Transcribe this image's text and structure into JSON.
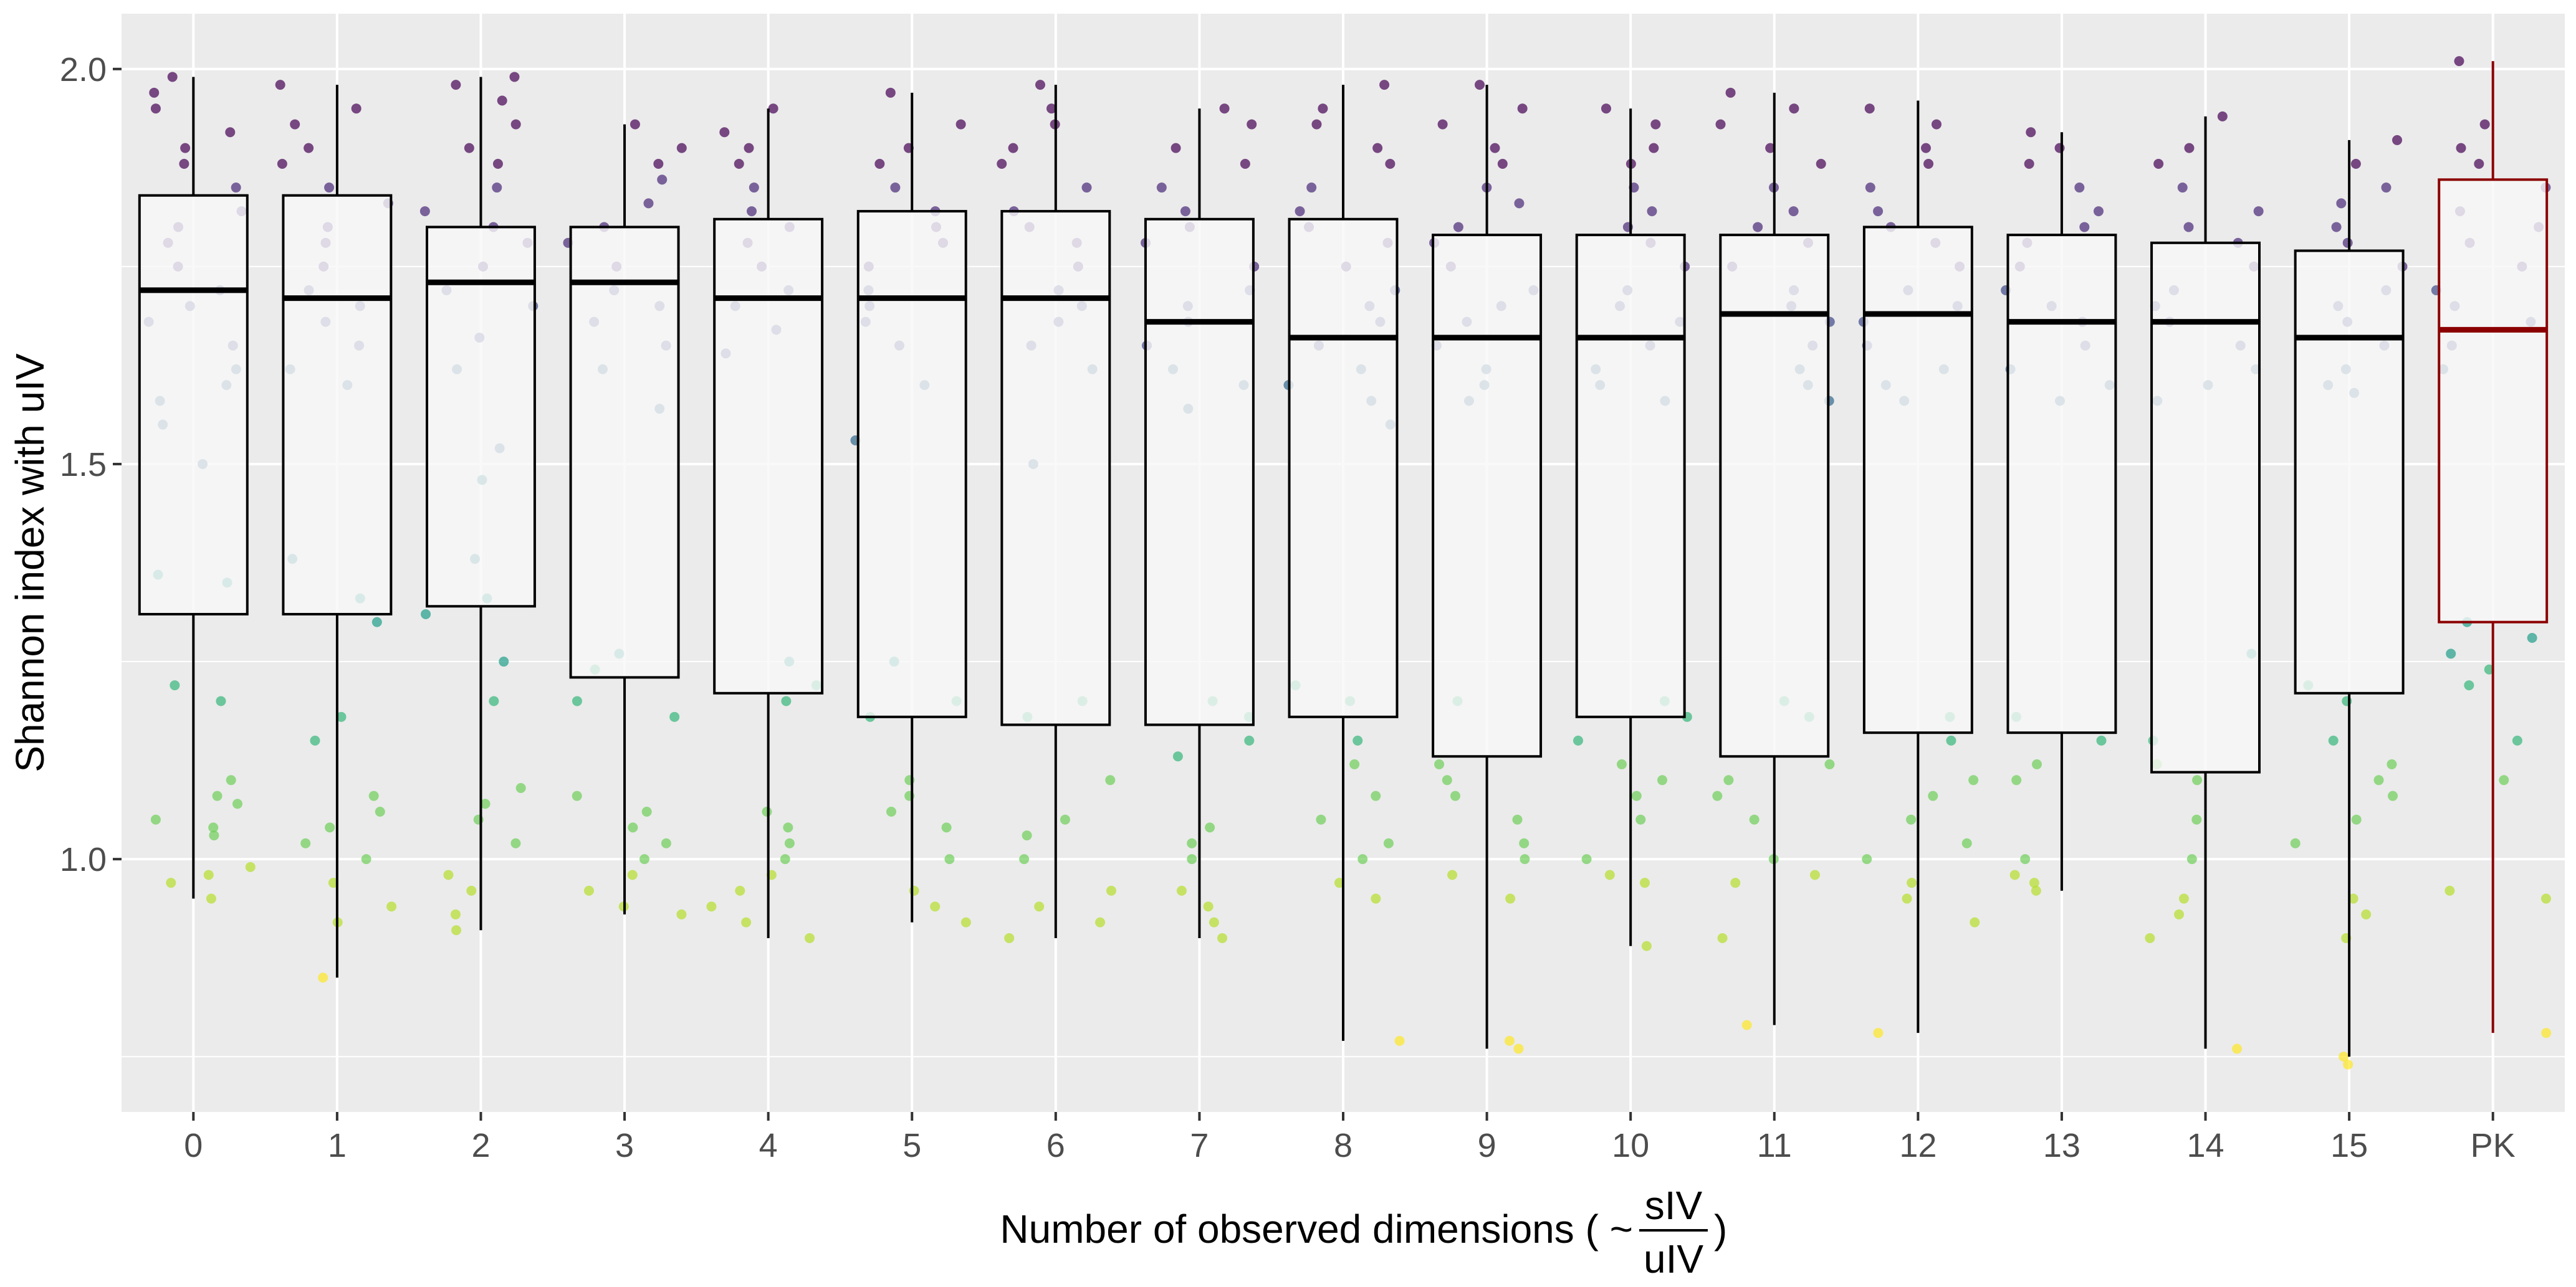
{
  "chart_data": {
    "type": "box",
    "ylabel": "Shannon index with uIV",
    "xlabel": {
      "prefix": "Number of observed dimensions ( ~",
      "numerator": "sIV",
      "denominator": "uIV",
      "suffix": ")"
    },
    "ylim": [
      0.68,
      2.07
    ],
    "y_ticks": [
      1.0,
      1.5,
      2.0
    ],
    "y_tick_labels": [
      "1.0",
      "1.5",
      "2.0"
    ],
    "grid": true,
    "categories": [
      "0",
      "1",
      "2",
      "3",
      "4",
      "5",
      "6",
      "7",
      "8",
      "9",
      "10",
      "11",
      "12",
      "13",
      "14",
      "15",
      "PK"
    ],
    "highlight": {
      "category": "PK",
      "color": "#8b0000"
    },
    "box_color": "#000000",
    "box_fill": "#f7f7f7",
    "panel_background": "#ebebeb",
    "point_palette": [
      "#fde725",
      "#b5de2b",
      "#6ece58",
      "#35b779",
      "#1f9e89",
      "#26828e",
      "#31688e",
      "#3e4989",
      "#482878",
      "#440154"
    ],
    "boxes": [
      {
        "category": "0",
        "whisker_low": 0.95,
        "q1": 1.31,
        "median": 1.72,
        "q3": 1.84,
        "whisker_high": 1.99
      },
      {
        "category": "1",
        "whisker_low": 0.85,
        "q1": 1.31,
        "median": 1.71,
        "q3": 1.84,
        "whisker_high": 1.98
      },
      {
        "category": "2",
        "whisker_low": 0.91,
        "q1": 1.32,
        "median": 1.73,
        "q3": 1.8,
        "whisker_high": 1.99
      },
      {
        "category": "3",
        "whisker_low": 0.93,
        "q1": 1.23,
        "median": 1.73,
        "q3": 1.8,
        "whisker_high": 1.93
      },
      {
        "category": "4",
        "whisker_low": 0.9,
        "q1": 1.21,
        "median": 1.71,
        "q3": 1.81,
        "whisker_high": 1.95
      },
      {
        "category": "5",
        "whisker_low": 0.92,
        "q1": 1.18,
        "median": 1.71,
        "q3": 1.82,
        "whisker_high": 1.97
      },
      {
        "category": "6",
        "whisker_low": 0.9,
        "q1": 1.17,
        "median": 1.71,
        "q3": 1.82,
        "whisker_high": 1.98
      },
      {
        "category": "7",
        "whisker_low": 0.9,
        "q1": 1.17,
        "median": 1.68,
        "q3": 1.81,
        "whisker_high": 1.95
      },
      {
        "category": "8",
        "whisker_low": 0.77,
        "q1": 1.18,
        "median": 1.66,
        "q3": 1.81,
        "whisker_high": 1.98
      },
      {
        "category": "9",
        "whisker_low": 0.76,
        "q1": 1.13,
        "median": 1.66,
        "q3": 1.79,
        "whisker_high": 1.98
      },
      {
        "category": "10",
        "whisker_low": 0.89,
        "q1": 1.18,
        "median": 1.66,
        "q3": 1.79,
        "whisker_high": 1.95
      },
      {
        "category": "11",
        "whisker_low": 0.79,
        "q1": 1.13,
        "median": 1.69,
        "q3": 1.79,
        "whisker_high": 1.97
      },
      {
        "category": "12",
        "whisker_low": 0.78,
        "q1": 1.16,
        "median": 1.69,
        "q3": 1.8,
        "whisker_high": 1.96
      },
      {
        "category": "13",
        "whisker_low": 0.96,
        "q1": 1.16,
        "median": 1.68,
        "q3": 1.79,
        "whisker_high": 1.92
      },
      {
        "category": "14",
        "whisker_low": 0.76,
        "q1": 1.11,
        "median": 1.68,
        "q3": 1.78,
        "whisker_high": 1.94
      },
      {
        "category": "15",
        "whisker_low": 0.75,
        "q1": 1.21,
        "median": 1.66,
        "q3": 1.77,
        "whisker_high": 1.91
      },
      {
        "category": "PK",
        "whisker_low": 0.78,
        "q1": 1.3,
        "median": 1.67,
        "q3": 1.86,
        "whisker_high": 2.01
      }
    ],
    "points": [
      {
        "category": "0",
        "values": [
          0.95,
          0.97,
          0.98,
          0.99,
          1.03,
          1.04,
          1.05,
          1.07,
          1.08,
          1.1,
          1.2,
          1.22,
          1.35,
          1.36,
          1.5,
          1.55,
          1.58,
          1.6,
          1.62,
          1.65,
          1.68,
          1.7,
          1.72,
          1.75,
          1.78,
          1.8,
          1.82,
          1.85,
          1.88,
          1.9,
          1.92,
          1.95,
          1.97,
          1.99
        ]
      },
      {
        "category": "1",
        "values": [
          0.85,
          0.92,
          0.94,
          0.97,
          1.0,
          1.02,
          1.04,
          1.06,
          1.08,
          1.15,
          1.18,
          1.3,
          1.33,
          1.38,
          1.6,
          1.62,
          1.65,
          1.68,
          1.7,
          1.72,
          1.75,
          1.78,
          1.8,
          1.83,
          1.85,
          1.88,
          1.9,
          1.93,
          1.95,
          1.98
        ]
      },
      {
        "category": "2",
        "values": [
          0.91,
          0.93,
          0.96,
          0.98,
          1.02,
          1.05,
          1.07,
          1.09,
          1.2,
          1.25,
          1.31,
          1.33,
          1.38,
          1.48,
          1.52,
          1.62,
          1.66,
          1.7,
          1.72,
          1.75,
          1.78,
          1.8,
          1.82,
          1.85,
          1.88,
          1.9,
          1.93,
          1.96,
          1.98,
          1.99
        ]
      },
      {
        "category": "3",
        "values": [
          0.93,
          0.94,
          0.96,
          0.98,
          1.0,
          1.02,
          1.04,
          1.06,
          1.08,
          1.18,
          1.2,
          1.24,
          1.26,
          1.57,
          1.62,
          1.65,
          1.68,
          1.7,
          1.72,
          1.75,
          1.78,
          1.8,
          1.83,
          1.86,
          1.88,
          1.9,
          1.93
        ]
      },
      {
        "category": "4",
        "values": [
          0.9,
          0.92,
          0.94,
          0.96,
          0.98,
          1.0,
          1.02,
          1.04,
          1.06,
          1.2,
          1.22,
          1.25,
          1.64,
          1.67,
          1.7,
          1.72,
          1.75,
          1.78,
          1.8,
          1.82,
          1.85,
          1.88,
          1.9,
          1.92,
          1.95
        ]
      },
      {
        "category": "5",
        "values": [
          0.92,
          0.94,
          0.96,
          1.0,
          1.04,
          1.06,
          1.08,
          1.1,
          1.18,
          1.2,
          1.25,
          1.53,
          1.6,
          1.65,
          1.68,
          1.7,
          1.72,
          1.75,
          1.78,
          1.8,
          1.82,
          1.85,
          1.88,
          1.9,
          1.93,
          1.97
        ]
      },
      {
        "category": "6",
        "values": [
          0.9,
          0.92,
          0.94,
          0.96,
          1.0,
          1.03,
          1.05,
          1.1,
          1.18,
          1.2,
          1.5,
          1.62,
          1.65,
          1.68,
          1.7,
          1.72,
          1.75,
          1.78,
          1.8,
          1.82,
          1.85,
          1.88,
          1.9,
          1.93,
          1.95,
          1.98
        ]
      },
      {
        "category": "7",
        "values": [
          0.9,
          0.92,
          0.94,
          0.96,
          1.0,
          1.02,
          1.04,
          1.13,
          1.15,
          1.18,
          1.2,
          1.57,
          1.6,
          1.62,
          1.65,
          1.68,
          1.7,
          1.72,
          1.75,
          1.78,
          1.8,
          1.82,
          1.85,
          1.88,
          1.9,
          1.93,
          1.95
        ]
      },
      {
        "category": "8",
        "values": [
          0.77,
          0.95,
          0.97,
          1.0,
          1.02,
          1.05,
          1.08,
          1.12,
          1.15,
          1.2,
          1.22,
          1.55,
          1.58,
          1.6,
          1.62,
          1.65,
          1.68,
          1.7,
          1.72,
          1.75,
          1.78,
          1.8,
          1.82,
          1.85,
          1.88,
          1.9,
          1.93,
          1.95,
          1.98
        ]
      },
      {
        "category": "9",
        "values": [
          0.76,
          0.77,
          0.95,
          0.98,
          1.0,
          1.02,
          1.05,
          1.08,
          1.1,
          1.12,
          1.2,
          1.58,
          1.6,
          1.62,
          1.65,
          1.68,
          1.7,
          1.72,
          1.75,
          1.78,
          1.8,
          1.83,
          1.85,
          1.88,
          1.9,
          1.93,
          1.95,
          1.98
        ]
      },
      {
        "category": "10",
        "values": [
          0.89,
          0.97,
          0.98,
          1.0,
          1.05,
          1.08,
          1.1,
          1.12,
          1.15,
          1.18,
          1.2,
          1.58,
          1.6,
          1.62,
          1.65,
          1.68,
          1.7,
          1.72,
          1.75,
          1.78,
          1.8,
          1.82,
          1.85,
          1.88,
          1.9,
          1.93,
          1.95
        ]
      },
      {
        "category": "11",
        "values": [
          0.79,
          0.9,
          0.97,
          0.98,
          1.0,
          1.05,
          1.08,
          1.1,
          1.12,
          1.18,
          1.2,
          1.58,
          1.6,
          1.62,
          1.65,
          1.68,
          1.7,
          1.72,
          1.75,
          1.78,
          1.8,
          1.82,
          1.85,
          1.88,
          1.9,
          1.93,
          1.95,
          1.97
        ]
      },
      {
        "category": "12",
        "values": [
          0.78,
          0.92,
          0.95,
          0.97,
          1.0,
          1.02,
          1.05,
          1.08,
          1.1,
          1.15,
          1.18,
          1.58,
          1.6,
          1.62,
          1.65,
          1.68,
          1.7,
          1.72,
          1.75,
          1.78,
          1.8,
          1.82,
          1.85,
          1.88,
          1.9,
          1.93,
          1.95
        ]
      },
      {
        "category": "13",
        "values": [
          0.96,
          0.97,
          0.98,
          1.0,
          1.1,
          1.12,
          1.15,
          1.18,
          1.58,
          1.6,
          1.62,
          1.65,
          1.68,
          1.7,
          1.72,
          1.75,
          1.78,
          1.8,
          1.82,
          1.85,
          1.88,
          1.9,
          1.92
        ]
      },
      {
        "category": "14",
        "values": [
          0.76,
          0.9,
          0.93,
          0.95,
          1.0,
          1.05,
          1.1,
          1.12,
          1.15,
          1.26,
          1.58,
          1.6,
          1.62,
          1.65,
          1.68,
          1.7,
          1.72,
          1.75,
          1.78,
          1.8,
          1.82,
          1.85,
          1.88,
          1.9,
          1.94
        ]
      },
      {
        "category": "15",
        "values": [
          0.74,
          0.75,
          0.9,
          0.93,
          0.95,
          1.02,
          1.05,
          1.08,
          1.1,
          1.12,
          1.15,
          1.2,
          1.22,
          1.59,
          1.6,
          1.62,
          1.65,
          1.68,
          1.7,
          1.72,
          1.75,
          1.78,
          1.8,
          1.83,
          1.85,
          1.88,
          1.91
        ]
      },
      {
        "category": "PK",
        "values": [
          0.78,
          0.95,
          0.96,
          1.1,
          1.15,
          1.22,
          1.24,
          1.26,
          1.28,
          1.3,
          1.62,
          1.65,
          1.68,
          1.7,
          1.72,
          1.75,
          1.78,
          1.8,
          1.82,
          1.85,
          1.88,
          1.9,
          1.93,
          2.01
        ]
      }
    ]
  }
}
